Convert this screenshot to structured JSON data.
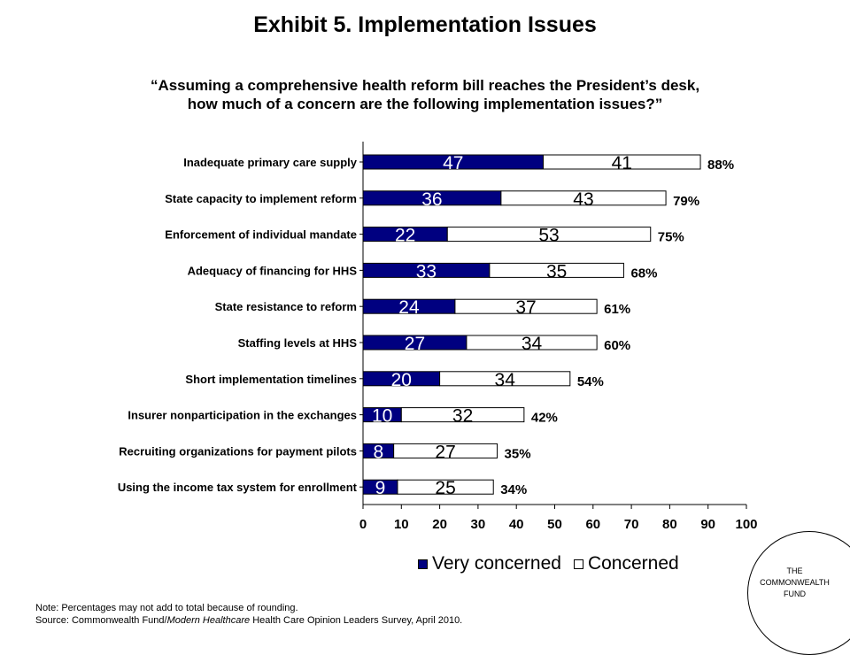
{
  "title": "Exhibit 5. Implementation Issues",
  "question": {
    "line1": "“Assuming a comprehensive health reform bill reaches the President’s desk,",
    "line2": "how much of a concern are the following implementation issues?”"
  },
  "colors": {
    "very_concerned": "#000080",
    "concerned": "#ffffff",
    "outline": "#000000"
  },
  "chart_data": {
    "type": "bar",
    "orientation": "horizontal",
    "stacked": true,
    "categories": [
      "Inadequate primary care supply",
      "State capacity to implement reform",
      "Enforcement of individual mandate",
      "Adequacy of financing for HHS",
      "State resistance to reform",
      "Staffing levels at HHS",
      "Short implementation timelines",
      "Insurer nonparticipation in the exchanges",
      "Recruiting organizations for payment pilots",
      "Using the income tax system for enrollment"
    ],
    "series": [
      {
        "name": "Very concerned",
        "values": [
          47,
          36,
          22,
          33,
          24,
          27,
          20,
          10,
          8,
          9
        ]
      },
      {
        "name": "Concerned",
        "values": [
          41,
          43,
          53,
          35,
          37,
          34,
          34,
          32,
          27,
          25
        ]
      }
    ],
    "totals": [
      "88%",
      "79%",
      "75%",
      "68%",
      "61%",
      "60%",
      "54%",
      "42%",
      "35%",
      "34%"
    ],
    "xlim": [
      0,
      100
    ],
    "xticks": [
      0,
      10,
      20,
      30,
      40,
      50,
      60,
      70,
      80,
      90,
      100
    ],
    "grid": false,
    "legend_position": "bottom"
  },
  "legend": {
    "very_concerned_label": "Very concerned",
    "concerned_label": "Concerned"
  },
  "notes": {
    "line1": "Note: Percentages may not add to total because of rounding.",
    "source_prefix": "Source: Commonwealth Fund/",
    "source_italic": "Modern Healthcare",
    "source_suffix": " Health Care Opinion Leaders Survey, April 2010."
  },
  "logo": {
    "line1": "THE",
    "line2": "COMMONWEALTH",
    "line3": "FUND"
  }
}
